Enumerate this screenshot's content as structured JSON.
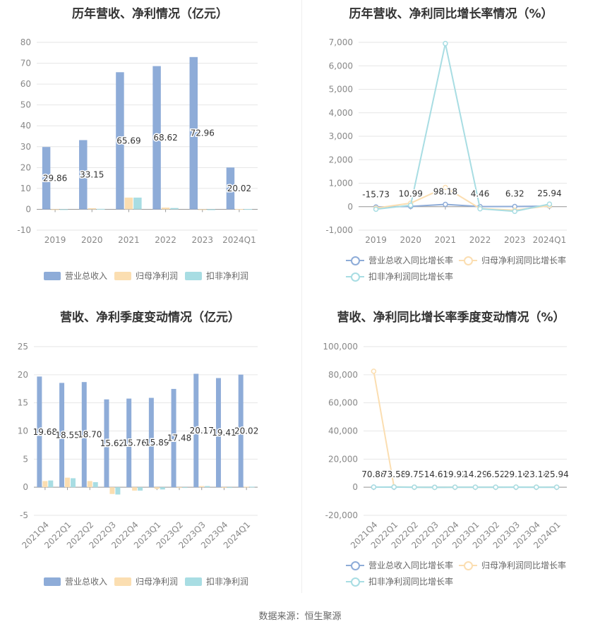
{
  "footer": {
    "source": "数据来源：恒生聚源"
  },
  "chart_data": [
    {
      "id": "annual-revenue-profit",
      "type": "bar",
      "title": "历年营收、净利情况（亿元）",
      "categories": [
        "2019",
        "2020",
        "2021",
        "2022",
        "2023",
        "2024Q1"
      ],
      "ylim": [
        -10,
        80
      ],
      "yticks": [
        -10,
        0,
        10,
        20,
        30,
        40,
        50,
        60,
        70,
        80
      ],
      "grid": true,
      "legend_position": "bottom",
      "label_series": 0,
      "series": [
        {
          "name": "营业总收入",
          "color": "#8eacd8",
          "values": [
            29.86,
            33.15,
            65.69,
            68.62,
            72.96,
            20.02
          ],
          "labels": [
            "29.86",
            "33.15",
            "65.69",
            "68.62",
            "72.96",
            "20.02"
          ]
        },
        {
          "name": "归母净利润",
          "color": "#fbdeb1",
          "values": [
            -0.2,
            0.5,
            5.6,
            0.8,
            -0.3,
            0.1
          ]
        },
        {
          "name": "扣非净利润",
          "color": "#a8dde3",
          "values": [
            -0.2,
            0.2,
            5.6,
            0.6,
            -0.4,
            0.1
          ]
        }
      ]
    },
    {
      "id": "annual-growth-rate",
      "type": "line",
      "title": "历年营收、净利同比增长率情况（%）",
      "categories": [
        "2019",
        "2020",
        "2021",
        "2022",
        "2023",
        "2024Q1"
      ],
      "ylim": [
        -1000,
        7000
      ],
      "yticks": [
        -1000,
        0,
        1000,
        2000,
        3000,
        4000,
        5000,
        6000,
        7000
      ],
      "ytick_labels": [
        "-1,000",
        "0",
        "1,000",
        "2,000",
        "3,000",
        "4,000",
        "5,000",
        "6,000",
        "7,000"
      ],
      "grid": true,
      "legend_position": "bottom",
      "label_series": 0,
      "series": [
        {
          "name": "营业总收入同比增长率",
          "color": "#8eacd8",
          "values": [
            -15.73,
            10.99,
            98.18,
            4.46,
            6.32,
            25.94
          ],
          "labels": [
            "-15.73",
            "10.99",
            "98.18",
            "4.46",
            "6.32",
            "25.94"
          ]
        },
        {
          "name": "归母净利润同比增长率",
          "color": "#fbdeb1",
          "values": [
            -60,
            150,
            820,
            -80,
            -150,
            40
          ]
        },
        {
          "name": "扣非净利润同比增长率",
          "color": "#a8dde3",
          "values": [
            -110,
            60,
            6950,
            -90,
            -200,
            110
          ]
        }
      ]
    },
    {
      "id": "quarterly-revenue-profit",
      "type": "bar",
      "title": "营收、净利季度变动情况（亿元）",
      "categories": [
        "2021Q4",
        "2022Q1",
        "2022Q2",
        "2022Q3",
        "2022Q4",
        "2023Q1",
        "2023Q2",
        "2023Q3",
        "2023Q4",
        "2024Q1"
      ],
      "ylim": [
        -5,
        25
      ],
      "yticks": [
        -5,
        0,
        5,
        10,
        15,
        20,
        25
      ],
      "grid": true,
      "legend_position": "bottom",
      "label_series": 0,
      "series": [
        {
          "name": "营业总收入",
          "color": "#8eacd8",
          "values": [
            19.68,
            18.55,
            18.7,
            15.62,
            15.76,
            15.89,
            17.48,
            20.17,
            19.41,
            20.02
          ],
          "labels": [
            "19.68",
            "18.55",
            "18.70",
            "15.62",
            "15.76",
            "15.89",
            "17.48",
            "20.17",
            "19.41",
            "20.02"
          ]
        },
        {
          "name": "归母净利润",
          "color": "#fbdeb1",
          "values": [
            1.1,
            1.7,
            1.1,
            -1.2,
            -0.6,
            -0.3,
            -0.1,
            0.2,
            -0.1,
            0.1
          ]
        },
        {
          "name": "扣非净利润",
          "color": "#a8dde3",
          "values": [
            1.2,
            1.6,
            0.9,
            -1.3,
            -0.6,
            -0.4,
            -0.1,
            0.2,
            -0.1,
            0.1
          ]
        }
      ]
    },
    {
      "id": "quarterly-growth-rate",
      "type": "line",
      "title": "营收、净利同比增长率季度变动情况（%）",
      "categories": [
        "2021Q4",
        "2022Q1",
        "2022Q2",
        "2022Q3",
        "2022Q4",
        "2023Q1",
        "2023Q2",
        "2023Q3",
        "2023Q4",
        "2024Q1"
      ],
      "ylim": [
        -20000,
        100000
      ],
      "yticks": [
        -20000,
        0,
        20000,
        40000,
        60000,
        80000,
        100000
      ],
      "ytick_labels": [
        "-20,000",
        "0",
        "20,000",
        "40,000",
        "60,000",
        "80,000",
        "100,000"
      ],
      "grid": true,
      "legend_position": "bottom",
      "label_series": 0,
      "series": [
        {
          "name": "营业总收入同比增长率",
          "color": "#8eacd8",
          "values": [
            70.88,
            73.58,
            9.75,
            -14.62,
            19.92,
            14.29,
            6.52,
            29.16,
            23.18,
            25.94
          ],
          "labels": [
            "70.88",
            "73.58",
            "9.75",
            "-14.62",
            "19.92",
            "14.29",
            "6.52",
            "29.16",
            "23.18",
            "25.94"
          ]
        },
        {
          "name": "归母净利润同比增长率",
          "color": "#fbdeb1",
          "values": [
            82500,
            300,
            50,
            -100,
            40,
            30,
            20,
            100,
            60,
            40
          ]
        },
        {
          "name": "扣非净利润同比增长率",
          "color": "#a8dde3",
          "values": [
            100,
            150,
            40,
            -120,
            30,
            20,
            10,
            80,
            50,
            30
          ]
        }
      ]
    }
  ]
}
